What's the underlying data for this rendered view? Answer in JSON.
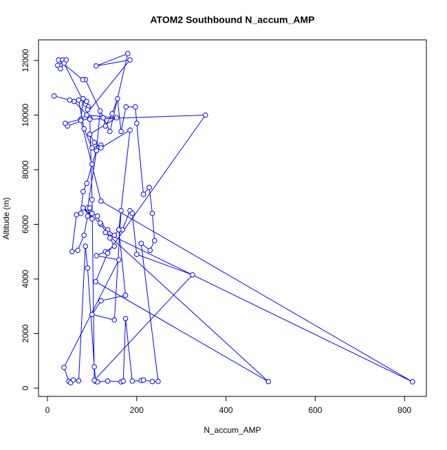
{
  "chart_data": {
    "type": "line",
    "markers": "circle",
    "title": "ATOM2 Southbound N_accum_AMP",
    "x_label": "N_accum_AMP",
    "y_label": "Altitude (m)",
    "color": "#0000ff",
    "xlim": [
      -20,
      849
    ],
    "ylim": [
      -302,
      12755
    ],
    "xticks": [
      0,
      200,
      400,
      600,
      800
    ],
    "yticks": [
      0,
      2000,
      4000,
      6000,
      8000,
      10000,
      12000
    ],
    "x": [
      15,
      50,
      60,
      95,
      45,
      40,
      75,
      80,
      85,
      92,
      88,
      70,
      82,
      100,
      120,
      110,
      90,
      100,
      80,
      120,
      140,
      150,
      130,
      110,
      160,
      37,
      48,
      52,
      58,
      70,
      85,
      90,
      105,
      108,
      112,
      135,
      165,
      170,
      175,
      190,
      210,
      215,
      235,
      248,
      210,
      230,
      240,
      235,
      228,
      215,
      200,
      197,
      176,
      165,
      157,
      145,
      130,
      125,
      118,
      110,
      100,
      88,
      80,
      75,
      65,
      55,
      68,
      82,
      90,
      95,
      100,
      112,
      118,
      135,
      150,
      160,
      168,
      185,
      190,
      200,
      325,
      105,
      100,
      95,
      354,
      135,
      108,
      495,
      130,
      818,
      120,
      75,
      185,
      109,
      180,
      140,
      85,
      79,
      25,
      34,
      42,
      23,
      29,
      37,
      90,
      88,
      155,
      95,
      105,
      120,
      185,
      160,
      175,
      120,
      100,
      150,
      165
    ],
    "values": [
      10700,
      10550,
      10500,
      9900,
      9600,
      9700,
      9850,
      10600,
      10400,
      10300,
      10500,
      10550,
      9500,
      8800,
      8900,
      8700,
      6600,
      6200,
      6600,
      6000,
      5500,
      5200,
      5000,
      4850,
      4700,
      760,
      250,
      200,
      300,
      270,
      5200,
      4400,
      780,
      250,
      230,
      260,
      230,
      260,
      2550,
      260,
      280,
      300,
      240,
      250,
      5300,
      5050,
      5400,
      6400,
      7350,
      7100,
      9700,
      10300,
      10300,
      9400,
      10600,
      10050,
      9600,
      9900,
      10150,
      8700,
      8200,
      7500,
      7200,
      6400,
      6350,
      5000,
      5050,
      5600,
      6300,
      6600,
      6400,
      6300,
      6050,
      5800,
      5600,
      5800,
      5800,
      6500,
      6400,
      4900,
      4150,
      290,
      6900,
      9850,
      10000,
      4950,
      3900,
      240,
      5700,
      230,
      6850,
      9800,
      12020,
      11800,
      12250,
      9400,
      11300,
      11300,
      12020,
      12020,
      12020,
      11820,
      11700,
      11900,
      10200,
      10000,
      9900,
      9300,
      9000,
      8800,
      9450,
      5800,
      3400,
      3200,
      2700,
      2500,
      6500
    ]
  }
}
